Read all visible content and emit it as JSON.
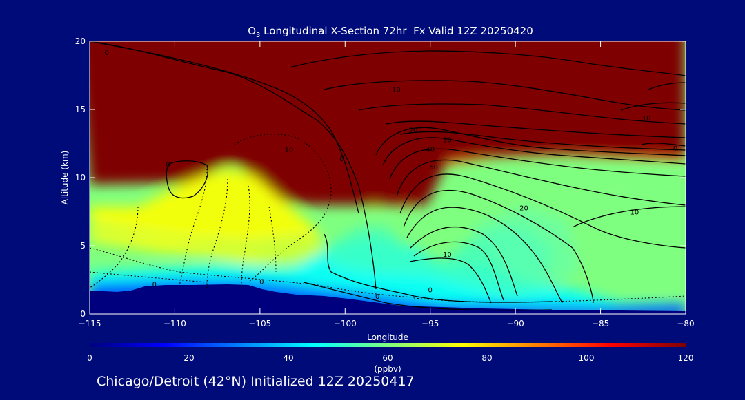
{
  "chart_data": {
    "type": "heatmap",
    "title_prefix": "O",
    "title_sub": "3",
    "title_rest": " Longitudinal X-Section 72hr  Fx Valid 12Z 20250420",
    "xlabel": "Longitude",
    "ylabel": "Altitude (km)",
    "xlim": [
      -115,
      -80
    ],
    "ylim": [
      0,
      20
    ],
    "xticks": [
      -115,
      -110,
      -105,
      -100,
      -95,
      -90,
      -85,
      -80
    ],
    "xtick_labels": [
      "−115",
      "−110",
      "−105",
      "−100",
      "−95",
      "−90",
      "−85",
      "−80"
    ],
    "yticks": [
      0,
      5,
      10,
      15,
      20
    ],
    "ytick_labels": [
      "0",
      "5",
      "10",
      "15",
      "20"
    ],
    "colorbar": {
      "label": "(ppbv)",
      "range": [
        0,
        120
      ],
      "ticks": [
        0,
        20,
        40,
        60,
        80,
        100,
        120
      ],
      "tick_labels": [
        "0",
        "20",
        "40",
        "60",
        "80",
        "100",
        "120"
      ]
    },
    "contour_labels": [
      {
        "lon": -114.0,
        "alt": 19.0,
        "text": "0"
      },
      {
        "lon": -97.0,
        "alt": 16.3,
        "text": "10"
      },
      {
        "lon": -96.0,
        "alt": 13.3,
        "text": "20"
      },
      {
        "lon": -94.0,
        "alt": 12.6,
        "text": "30"
      },
      {
        "lon": -95.0,
        "alt": 11.9,
        "text": "40"
      },
      {
        "lon": -94.8,
        "alt": 10.6,
        "text": "60"
      },
      {
        "lon": -82.3,
        "alt": 14.2,
        "text": "10"
      },
      {
        "lon": -80.6,
        "alt": 12.0,
        "text": "0"
      },
      {
        "lon": -103.3,
        "alt": 11.9,
        "text": "10"
      },
      {
        "lon": -110.4,
        "alt": 10.8,
        "text": "0"
      },
      {
        "lon": -100.2,
        "alt": 11.2,
        "text": "0"
      },
      {
        "lon": -89.5,
        "alt": 7.6,
        "text": "20"
      },
      {
        "lon": -83.0,
        "alt": 7.3,
        "text": "10"
      },
      {
        "lon": -94.0,
        "alt": 4.2,
        "text": "10"
      },
      {
        "lon": -111.2,
        "alt": 2.0,
        "text": "0"
      },
      {
        "lon": -104.9,
        "alt": 2.2,
        "text": "0"
      },
      {
        "lon": -98.1,
        "alt": 1.1,
        "text": "0"
      },
      {
        "lon": -95.0,
        "alt": 1.6,
        "text": "0"
      }
    ]
  },
  "footer": "Chicago/Detroit (42°N) Initialized 12Z 20250417",
  "colors": {
    "background": "#000b7a",
    "colormap": [
      "#00007f",
      "#0000ff",
      "#007fff",
      "#00ffff",
      "#7fff7f",
      "#ffff00",
      "#ff7f00",
      "#ff0000",
      "#7f0000"
    ]
  }
}
